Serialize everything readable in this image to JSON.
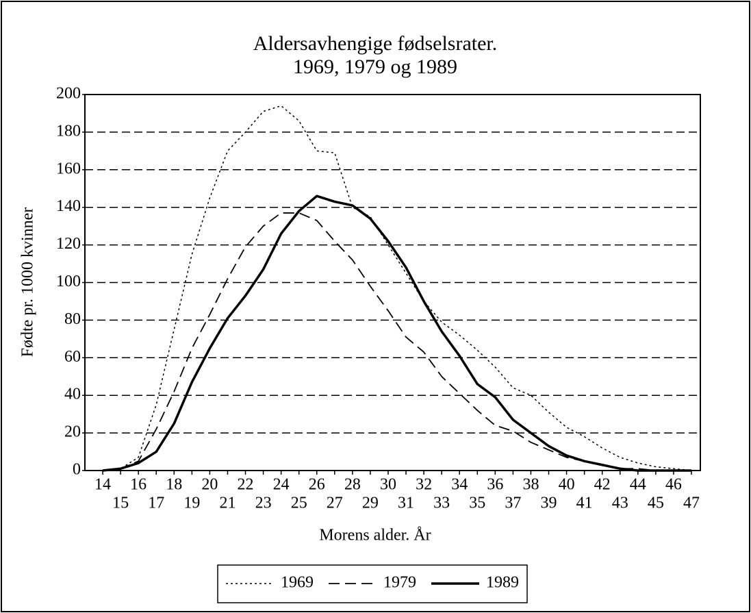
{
  "chart_data": {
    "type": "line",
    "title": "Aldersavhengige fødselsrater.",
    "subtitle": "1969, 1979 og 1989",
    "x_label": "Morens alder. År",
    "y_label": "Fødte pr. 1000 kvinner",
    "x": [
      14,
      15,
      16,
      17,
      18,
      19,
      20,
      21,
      22,
      23,
      24,
      25,
      26,
      27,
      28,
      29,
      30,
      31,
      32,
      33,
      34,
      35,
      36,
      37,
      38,
      39,
      40,
      41,
      42,
      43,
      44,
      45,
      46,
      47
    ],
    "series": [
      {
        "name": "1969",
        "color": "#000000",
        "values": [
          0,
          1,
          7,
          35,
          75,
          115,
          145,
          170,
          180,
          191,
          194,
          186,
          170,
          169,
          140,
          135,
          120,
          105,
          90,
          79,
          72,
          64,
          55,
          44,
          40,
          31,
          23,
          18,
          12,
          7,
          4,
          2,
          1,
          0
        ]
      },
      {
        "name": "1979",
        "color": "#000000",
        "values": [
          0,
          1,
          5,
          22,
          42,
          65,
          83,
          102,
          119,
          130,
          137,
          137,
          133,
          122,
          112,
          98,
          85,
          71,
          63,
          50,
          41,
          32,
          24,
          21,
          15,
          11,
          7,
          5,
          3,
          1,
          1,
          0,
          0,
          0
        ]
      },
      {
        "name": "1989",
        "color": "#000000",
        "values": [
          0,
          1,
          4,
          10,
          25,
          47,
          65,
          81,
          93,
          107,
          126,
          138,
          146,
          143,
          141,
          134,
          122,
          108,
          90,
          74,
          61,
          46,
          39,
          27,
          20,
          13,
          8,
          5,
          3,
          1,
          0,
          0,
          0,
          0
        ]
      }
    ],
    "xlim": [
      13,
      47.5
    ],
    "xticks": [
      14,
      15,
      16,
      17,
      18,
      19,
      20,
      21,
      22,
      23,
      24,
      25,
      26,
      27,
      28,
      29,
      30,
      31,
      32,
      33,
      34,
      35,
      36,
      37,
      38,
      39,
      40,
      41,
      42,
      43,
      44,
      45,
      46,
      47
    ],
    "ylim": [
      0,
      200
    ],
    "yticks": [
      0,
      20,
      40,
      60,
      80,
      100,
      120,
      140,
      160,
      180,
      200
    ],
    "grid": true,
    "legend": "bottom"
  }
}
